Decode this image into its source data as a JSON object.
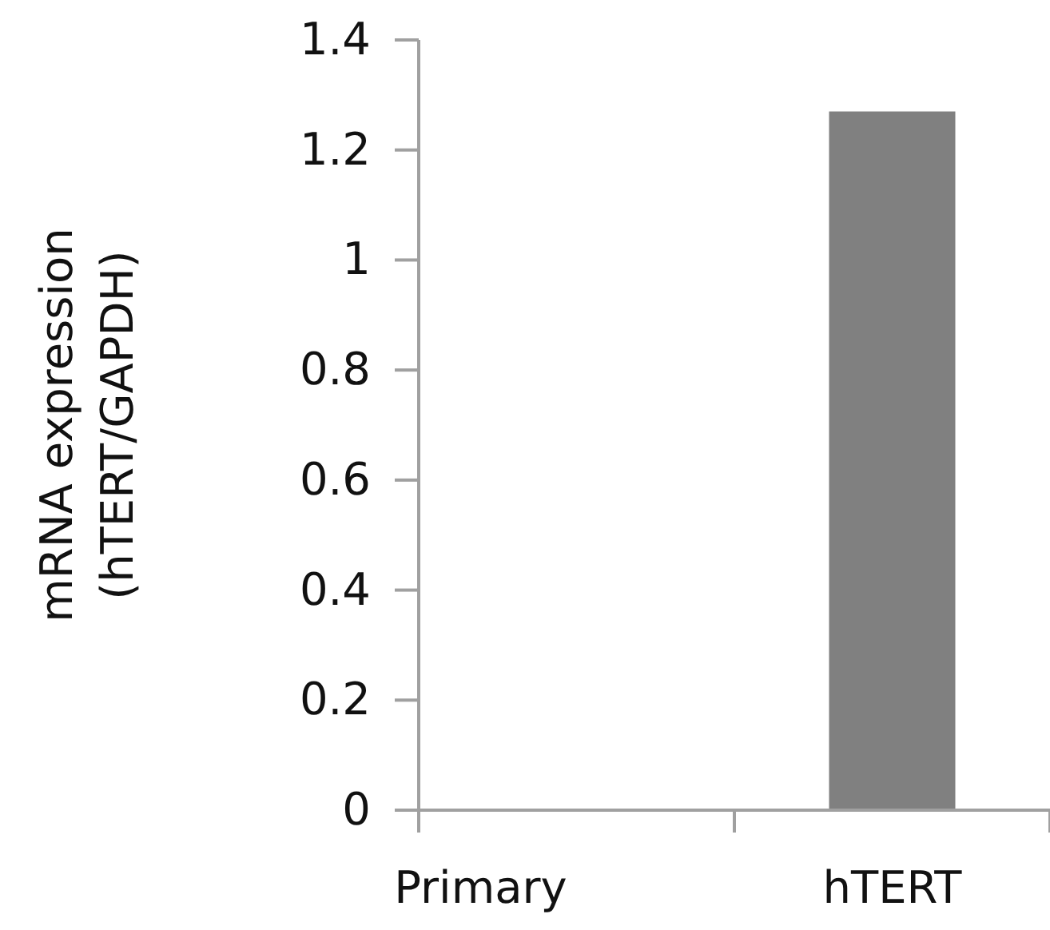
{
  "chart_data": {
    "type": "bar",
    "ylabel": "mRNA expression\n(hTERT/GAPDH)",
    "categories": [
      "Primary",
      "hTERT"
    ],
    "values": [
      0,
      1.27
    ],
    "color": "#808080",
    "ylim": [
      0,
      1.4
    ],
    "yticks": [
      0,
      0.2,
      0.4,
      0.6,
      0.8,
      1,
      1.2,
      1.4
    ],
    "grid": false
  }
}
